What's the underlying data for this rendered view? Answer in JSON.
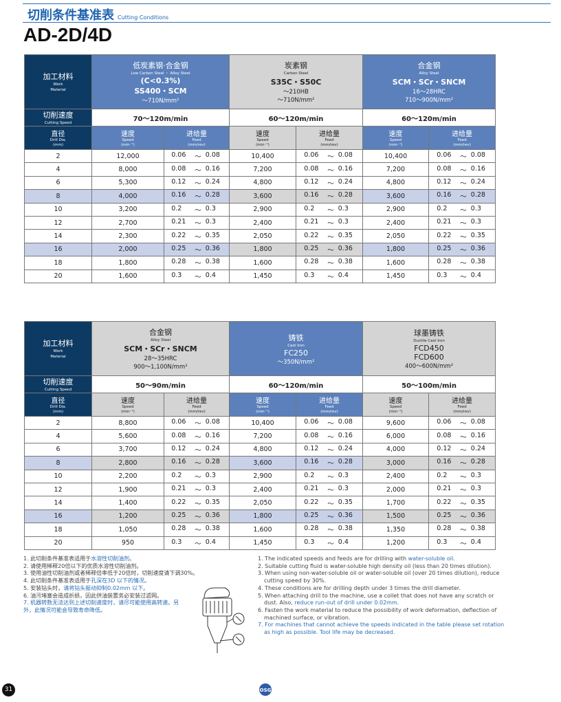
{
  "header": {
    "section_cn": "切削条件基准表",
    "section_en": "Cutting Conditions",
    "title": "AD-2D/4D"
  },
  "labels": {
    "material_cn": "加工材料",
    "material_en1": "Work",
    "material_en2": "Material",
    "speed_cn": "切削速度",
    "speed_en": "Cutting Speed",
    "dia_cn": "直径",
    "dia_en1": "Drill Dia.",
    "dia_en2": "(mm)",
    "spd_cn": "速度",
    "spd_en": "Speed",
    "spd_unit": "(min⁻¹)",
    "feed_cn": "进给量",
    "feed_en": "Feed",
    "feed_unit": "(mm/rev)",
    "tilde": "～"
  },
  "tables": [
    {
      "materials": [
        {
          "style": "blue",
          "cn": "低炭素钢·合金钢",
          "en": "Low Carbon Steel ・ Alloy Steel",
          "lines": [
            "(C<0.3%)",
            "SS400・SCM"
          ],
          "bold": [
            0,
            1
          ],
          "props": [
            "～710N/mm²"
          ],
          "speed": "70～120m/min"
        },
        {
          "style": "gray",
          "cn": "炭素钢",
          "en": "Carbon Steel",
          "lines": [
            "S35C・S50C"
          ],
          "bold": [
            0
          ],
          "props": [
            "～210HB",
            "～710N/mm²"
          ],
          "speed": "60～120m/min"
        },
        {
          "style": "blue",
          "cn": "合金钢",
          "en": "Alloy Steel",
          "lines": [
            "SCM・SCr・SNCM"
          ],
          "bold": [
            0
          ],
          "props": [
            "16～28HRC",
            "710～900N/mm²"
          ],
          "speed": "60～120m/min"
        }
      ],
      "rows": [
        {
          "dia": "2",
          "v": [
            [
              "12,000",
              "0.06",
              "0.08"
            ],
            [
              "10,400",
              "0.06",
              "0.08"
            ],
            [
              "10,400",
              "0.06",
              "0.08"
            ]
          ]
        },
        {
          "dia": "4",
          "v": [
            [
              "8,000",
              "0.08",
              "0.16"
            ],
            [
              "7,200",
              "0.08",
              "0.16"
            ],
            [
              "7,200",
              "0.08",
              "0.16"
            ]
          ]
        },
        {
          "dia": "6",
          "v": [
            [
              "5,300",
              "0.12",
              "0.24"
            ],
            [
              "4,800",
              "0.12",
              "0.24"
            ],
            [
              "4,800",
              "0.12",
              "0.24"
            ]
          ]
        },
        {
          "dia": "8",
          "v": [
            [
              "4,000",
              "0.16",
              "0.28"
            ],
            [
              "3,600",
              "0.16",
              "0.28"
            ],
            [
              "3,600",
              "0.16",
              "0.28"
            ]
          ]
        },
        {
          "dia": "10",
          "v": [
            [
              "3,200",
              "0.2",
              "0.3"
            ],
            [
              "2,900",
              "0.2",
              "0.3"
            ],
            [
              "2,900",
              "0.2",
              "0.3"
            ]
          ]
        },
        {
          "dia": "12",
          "v": [
            [
              "2,700",
              "0.21",
              "0.3"
            ],
            [
              "2,400",
              "0.21",
              "0.3"
            ],
            [
              "2,400",
              "0.21",
              "0.3"
            ]
          ]
        },
        {
          "dia": "14",
          "v": [
            [
              "2,300",
              "0.22",
              "0.35"
            ],
            [
              "2,050",
              "0.22",
              "0.35"
            ],
            [
              "2,050",
              "0.22",
              "0.35"
            ]
          ]
        },
        {
          "dia": "16",
          "v": [
            [
              "2,000",
              "0.25",
              "0.36"
            ],
            [
              "1,800",
              "0.25",
              "0.36"
            ],
            [
              "1,800",
              "0.25",
              "0.36"
            ]
          ]
        },
        {
          "dia": "18",
          "v": [
            [
              "1,800",
              "0.28",
              "0.38"
            ],
            [
              "1,600",
              "0.28",
              "0.38"
            ],
            [
              "1,600",
              "0.28",
              "0.38"
            ]
          ]
        },
        {
          "dia": "20",
          "v": [
            [
              "1,600",
              "0.3",
              "0.4"
            ],
            [
              "1,450",
              "0.3",
              "0.4"
            ],
            [
              "1,450",
              "0.3",
              "0.4"
            ]
          ]
        }
      ]
    },
    {
      "materials": [
        {
          "style": "gray",
          "cn": "合金钢",
          "en": "Alloy Steel",
          "lines": [
            "SCM・SCr・SNCM"
          ],
          "bold": [
            0
          ],
          "props": [
            "28～35HRC",
            "900～1,100N/mm²"
          ],
          "speed": "50～90m/min"
        },
        {
          "style": "blue",
          "cn": "铸铁",
          "en": "Cast Iron",
          "lines": [
            "FC250"
          ],
          "bold": [],
          "props": [
            "～350N/mm²"
          ],
          "speed": "60～120m/min"
        },
        {
          "style": "gray",
          "cn": "球墨铸铁",
          "en": "Ductile Cast Iron",
          "lines": [
            "FCD450",
            "FCD600"
          ],
          "bold": [],
          "props": [
            "400～600N/mm²"
          ],
          "speed": "50～100m/min"
        }
      ],
      "rows": [
        {
          "dia": "2",
          "v": [
            [
              "8,800",
              "0.06",
              "0.08"
            ],
            [
              "10,400",
              "0.06",
              "0.08"
            ],
            [
              "9,600",
              "0.06",
              "0.08"
            ]
          ]
        },
        {
          "dia": "4",
          "v": [
            [
              "5,600",
              "0.08",
              "0.16"
            ],
            [
              "7,200",
              "0.08",
              "0.16"
            ],
            [
              "6,000",
              "0.08",
              "0.16"
            ]
          ]
        },
        {
          "dia": "6",
          "v": [
            [
              "3,700",
              "0.12",
              "0.24"
            ],
            [
              "4,800",
              "0.12",
              "0.24"
            ],
            [
              "4,000",
              "0.12",
              "0.24"
            ]
          ]
        },
        {
          "dia": "8",
          "v": [
            [
              "2,800",
              "0.16",
              "0.28"
            ],
            [
              "3,600",
              "0.16",
              "0.28"
            ],
            [
              "3,000",
              "0.16",
              "0.28"
            ]
          ]
        },
        {
          "dia": "10",
          "v": [
            [
              "2,200",
              "0.2",
              "0.3"
            ],
            [
              "2,900",
              "0.2",
              "0.3"
            ],
            [
              "2,400",
              "0.2",
              "0.3"
            ]
          ]
        },
        {
          "dia": "12",
          "v": [
            [
              "1,900",
              "0.21",
              "0.3"
            ],
            [
              "2,400",
              "0.21",
              "0.3"
            ],
            [
              "2,000",
              "0.21",
              "0.3"
            ]
          ]
        },
        {
          "dia": "14",
          "v": [
            [
              "1,400",
              "0.22",
              "0.35"
            ],
            [
              "2,050",
              "0.22",
              "0.35"
            ],
            [
              "1,700",
              "0.22",
              "0.35"
            ]
          ]
        },
        {
          "dia": "16",
          "v": [
            [
              "1,200",
              "0.25",
              "0.36"
            ],
            [
              "1,800",
              "0.25",
              "0.36"
            ],
            [
              "1,500",
              "0.25",
              "0.36"
            ]
          ]
        },
        {
          "dia": "18",
          "v": [
            [
              "1,050",
              "0.28",
              "0.38"
            ],
            [
              "1,600",
              "0.28",
              "0.38"
            ],
            [
              "1,350",
              "0.28",
              "0.38"
            ]
          ]
        },
        {
          "dia": "20",
          "v": [
            [
              "950",
              "0.3",
              "0.4"
            ],
            [
              "1,450",
              "0.3",
              "0.4"
            ],
            [
              "1,200",
              "0.3",
              "0.4"
            ]
          ]
        }
      ]
    }
  ],
  "notes_cn": [
    {
      "t": "1. 此切削条件基准表适用于",
      "h": "水溶性切削油剂。"
    },
    {
      "t": "2. 请使用稀释20倍以下的优质水溶性切削油剂。"
    },
    {
      "t": "3. 使用油性切削油剂或者稀释倍率低于20倍时，切削速度请下调30%。"
    },
    {
      "t": "4. 此切削条件基准表适用于",
      "h": "孔深在3D 以下的情况。"
    },
    {
      "t": "5. 安装钻头时，",
      "h": "请将钻头振动抑制0.02mm 以下。"
    },
    {
      "t": "6. 油污堵塞会造成折损，因此供油装置务必安装过滤网。"
    },
    {
      "h": "7. 机器转数无法达到上述切削速度时，请尽可能使用高转速。另"
    },
    {
      "h": "外，此情况可能会导致寿命降低。"
    }
  ],
  "notes_en": [
    {
      "t": "1. The indicated speeds and feeds are for drilling with ",
      "h": "water-soluble oil."
    },
    {
      "t": "2. Suitable cutting fluid is water-soluble high density oil (less than 20 times dilution)."
    },
    {
      "t": "3. When using non-water-soluble oil or water-soluble oil (over 20 times dilution), reduce cutting speed by 30%."
    },
    {
      "t": "4. These conditions are for drilling depth under 3 times the drill diameter."
    },
    {
      "t": "5. When attaching drill to the machine, use a collet that does not have any scratch or dust. Also, ",
      "h": "reduce run-out of drill under 0.02mm."
    },
    {
      "t": "6. Fasten the work material to reduce the possibility of work deformation, deflection of machined surface, or vibration."
    },
    {
      "h": "7. For machines that cannot achieve the speeds indicated in the table please set rotation as high as possible. Tool life may be decreased."
    }
  ],
  "footer": {
    "page": "31",
    "logo": "OSG"
  },
  "colors": {
    "navy": "#0d3a63",
    "blue": "#5b80bb",
    "gray": "#d4d4d4",
    "highlight": "#2a6db5",
    "shade_blue": "#c8d1e8"
  }
}
